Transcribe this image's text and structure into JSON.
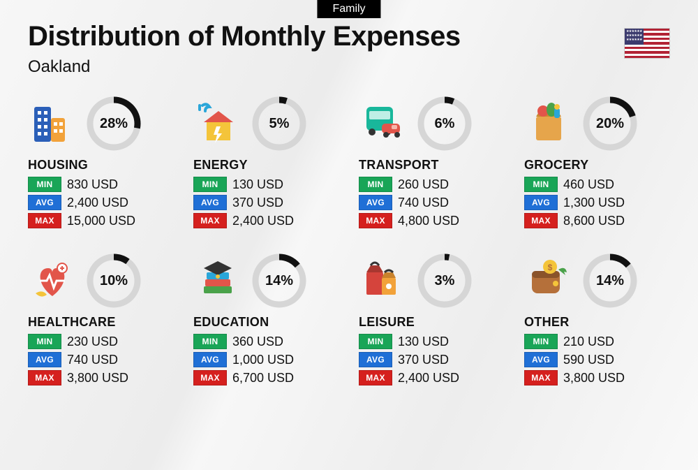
{
  "tag": "Family",
  "title": "Distribution of Monthly Expenses",
  "subtitle": "Oakland",
  "country_icon": "us-flag",
  "colors": {
    "min_badge": "#19a557",
    "avg_badge": "#1f6fd6",
    "max_badge": "#d5201e",
    "donut_track": "#d6d6d6",
    "donut_fill": "#111111",
    "text": "#111111",
    "background_start": "#f7f7f7",
    "background_end": "#ececec"
  },
  "labels": {
    "min": "MIN",
    "avg": "AVG",
    "max": "MAX"
  },
  "currency": "USD",
  "categories": [
    {
      "id": "housing",
      "name": "HOUSING",
      "icon": "buildings-icon",
      "percent": 28,
      "min": "830",
      "avg": "2,400",
      "max": "15,000"
    },
    {
      "id": "energy",
      "name": "ENERGY",
      "icon": "energy-icon",
      "percent": 5,
      "min": "130",
      "avg": "370",
      "max": "2,400"
    },
    {
      "id": "transport",
      "name": "TRANSPORT",
      "icon": "transport-icon",
      "percent": 6,
      "min": "260",
      "avg": "740",
      "max": "4,800"
    },
    {
      "id": "grocery",
      "name": "GROCERY",
      "icon": "grocery-icon",
      "percent": 20,
      "min": "460",
      "avg": "1,300",
      "max": "8,600"
    },
    {
      "id": "healthcare",
      "name": "HEALTHCARE",
      "icon": "health-icon",
      "percent": 10,
      "min": "230",
      "avg": "740",
      "max": "3,800"
    },
    {
      "id": "education",
      "name": "EDUCATION",
      "icon": "education-icon",
      "percent": 14,
      "min": "360",
      "avg": "1,000",
      "max": "6,700"
    },
    {
      "id": "leisure",
      "name": "LEISURE",
      "icon": "leisure-icon",
      "percent": 3,
      "min": "130",
      "avg": "370",
      "max": "2,400"
    },
    {
      "id": "other",
      "name": "OTHER",
      "icon": "other-icon",
      "percent": 14,
      "min": "210",
      "avg": "590",
      "max": "3,800"
    }
  ],
  "donut": {
    "radius": 34,
    "stroke_width": 9
  }
}
